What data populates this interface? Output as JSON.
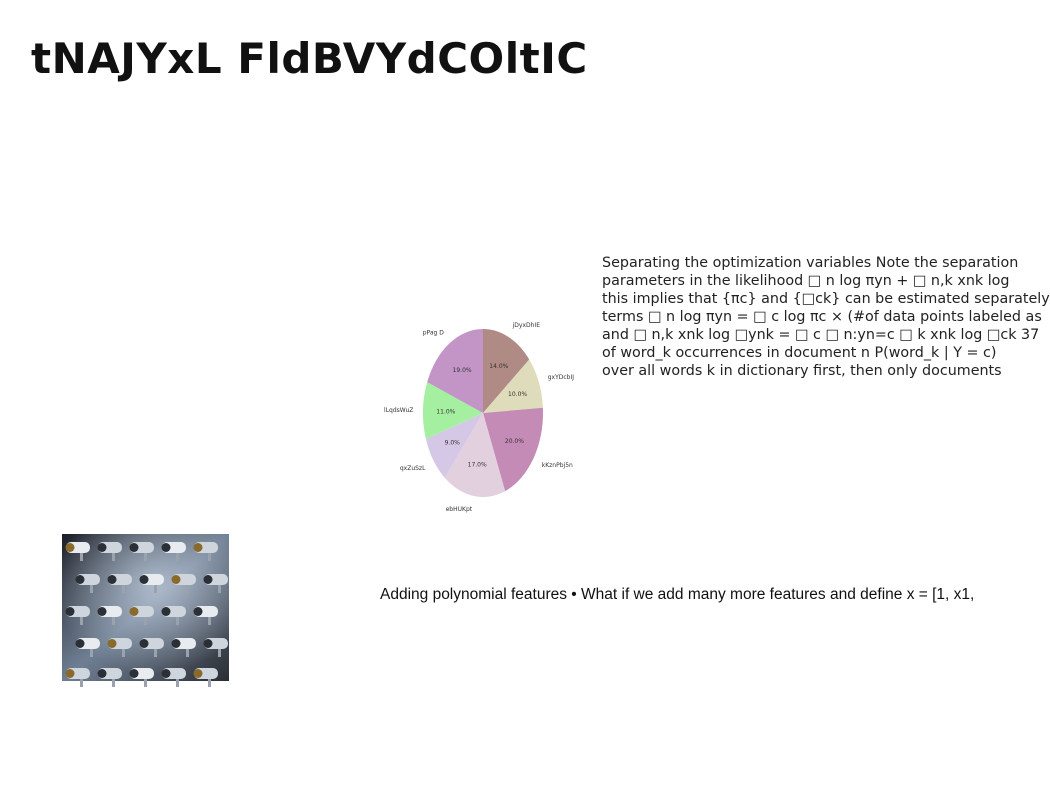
{
  "slide": {
    "title": "tNAJYxL FldBVYdCOltIC",
    "body_lines": [
      "Separating the optimization variables Note the separation",
      "parameters in the likelihood □ n log πyn + □ n,k xnk log",
      "this implies that {πc} and {□ck} can be estimated separately",
      "terms □ n log πyn = □ c log πc × (#of data points labeled as",
      "and □ n,k xnk log □ynk = □ c □ n:yn=c □ k xnk log □ck 37",
      "of word_k occurrences in document n P(word_k | Y = c)",
      "over all words k in dictionary first, then only documents"
    ],
    "caption": "Adding polynomial features • What if we add many more features and define x = [1, x1,",
    "photo_icon": "security-cameras-photo"
  },
  "chart_data": {
    "type": "pie",
    "title": "",
    "start_angle_deg": 90,
    "direction": "clockwise",
    "slices": [
      {
        "label": "jDyxDhIE",
        "value": 14.0,
        "display": "14.0%",
        "color": "#b08a84"
      },
      {
        "label": "gxYDcbIJ",
        "value": 10.0,
        "display": "10.0%",
        "color": "#dedcba"
      },
      {
        "label": "kKznPbj5n",
        "value": 20.0,
        "display": "20.0%",
        "color": "#c48bb6"
      },
      {
        "label": "ebHUKpt",
        "value": 17.0,
        "display": "17.0%",
        "color": "#e2d0df"
      },
      {
        "label": "qxZuSzL",
        "value": 9.0,
        "display": "9.0%",
        "color": "#d4c8e6"
      },
      {
        "label": "lLqdsWuZ",
        "value": 11.0,
        "display": "11.0%",
        "color": "#a4f0a0"
      },
      {
        "label": "pPag D",
        "value": 19.0,
        "display": "19.0%",
        "color": "#c295c6"
      }
    ]
  }
}
